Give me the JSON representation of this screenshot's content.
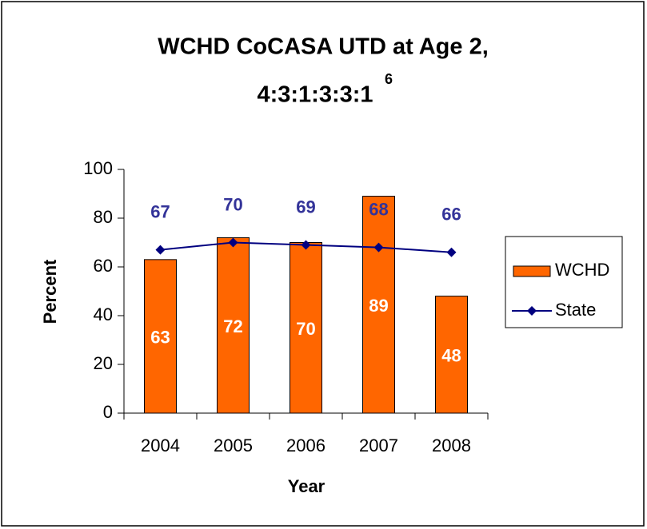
{
  "chart_data": {
    "type": "bar_line",
    "title": [
      "WCHD CoCASA UTD at Age 2,",
      "4:3:1:3:3:1"
    ],
    "title_superscript": "6",
    "xlabel": "Year",
    "ylabel": "Percent",
    "categories": [
      "2004",
      "2005",
      "2006",
      "2007",
      "2008"
    ],
    "series": [
      {
        "name": "WCHD",
        "type": "bar",
        "color": "#ff6600",
        "values": [
          63,
          72,
          70,
          89,
          48
        ]
      },
      {
        "name": "State",
        "type": "line",
        "color": "#000080",
        "label_color": "#333399",
        "values": [
          67,
          70,
          69,
          68,
          66
        ]
      }
    ],
    "ylim": [
      0,
      100
    ],
    "yticks": [
      0,
      20,
      40,
      60,
      80,
      100
    ],
    "legend": "right"
  }
}
